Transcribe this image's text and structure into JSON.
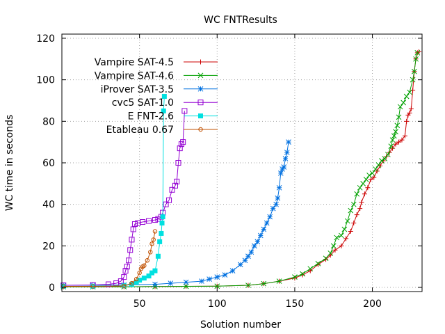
{
  "chart_data": {
    "type": "line",
    "title": "WC FNTResults",
    "xlabel": "Solution number",
    "ylabel": "WC time in seconds",
    "xlim": [
      0,
      232
    ],
    "ylim": [
      -2,
      122
    ],
    "xticks": [
      50,
      100,
      150,
      200
    ],
    "yticks": [
      0,
      20,
      40,
      60,
      80,
      100,
      120
    ],
    "grid": true,
    "legend_position": "top-left",
    "series": [
      {
        "name": "Vampire SAT-4.5",
        "color": "#cc0000",
        "marker": "plus",
        "points": [
          [
            1,
            0.3
          ],
          [
            20,
            0.3
          ],
          [
            40,
            0.3
          ],
          [
            60,
            0.4
          ],
          [
            80,
            0.5
          ],
          [
            100,
            0.6
          ],
          [
            120,
            1.0
          ],
          [
            130,
            1.8
          ],
          [
            140,
            3.0
          ],
          [
            150,
            4.5
          ],
          [
            155,
            6.0
          ],
          [
            160,
            8.0
          ],
          [
            165,
            11.0
          ],
          [
            170,
            13.5
          ],
          [
            173,
            15.5
          ],
          [
            176,
            18.0
          ],
          [
            180,
            20.0
          ],
          [
            183,
            23.5
          ],
          [
            186,
            27.0
          ],
          [
            188,
            31.0
          ],
          [
            190,
            35.0
          ],
          [
            192,
            38.0
          ],
          [
            193,
            41.0
          ],
          [
            195,
            45.0
          ],
          [
            197,
            48.0
          ],
          [
            199,
            52.0
          ],
          [
            201,
            53.0
          ],
          [
            203,
            56.0
          ],
          [
            205,
            58.5
          ],
          [
            207,
            61.0
          ],
          [
            209,
            63.0
          ],
          [
            211,
            65.0
          ],
          [
            213,
            67.0
          ],
          [
            215,
            69.0
          ],
          [
            217,
            70.0
          ],
          [
            219,
            71.0
          ],
          [
            221,
            73.0
          ],
          [
            222,
            80.0
          ],
          [
            223,
            83.0
          ],
          [
            224,
            84.0
          ],
          [
            225,
            86.0
          ],
          [
            226,
            95.0
          ],
          [
            227,
            104.0
          ],
          [
            228,
            110.0
          ],
          [
            229,
            113.0
          ],
          [
            230,
            113.5
          ]
        ]
      },
      {
        "name": "Vampire SAT-4.6",
        "color": "#00a000",
        "marker": "cross",
        "points": [
          [
            1,
            0.3
          ],
          [
            20,
            0.3
          ],
          [
            40,
            0.3
          ],
          [
            60,
            0.4
          ],
          [
            80,
            0.5
          ],
          [
            100,
            0.6
          ],
          [
            120,
            1.0
          ],
          [
            130,
            1.8
          ],
          [
            140,
            3.0
          ],
          [
            150,
            5.0
          ],
          [
            155,
            6.5
          ],
          [
            160,
            9.0
          ],
          [
            165,
            11.5
          ],
          [
            170,
            14.0
          ],
          [
            173,
            16.5
          ],
          [
            175,
            20.0
          ],
          [
            177,
            24.0
          ],
          [
            180,
            25.0
          ],
          [
            182,
            28.0
          ],
          [
            184,
            32.0
          ],
          [
            186,
            37.0
          ],
          [
            188,
            40.0
          ],
          [
            190,
            45.0
          ],
          [
            192,
            48.0
          ],
          [
            194,
            50.0
          ],
          [
            196,
            52.0
          ],
          [
            198,
            54.0
          ],
          [
            200,
            55.0
          ],
          [
            202,
            57.0
          ],
          [
            204,
            59.0
          ],
          [
            206,
            61.0
          ],
          [
            208,
            62.0
          ],
          [
            210,
            64.0
          ],
          [
            212,
            68.0
          ],
          [
            213,
            71.0
          ],
          [
            214,
            73.0
          ],
          [
            215,
            75.0
          ],
          [
            216,
            78.0
          ],
          [
            217,
            82.0
          ],
          [
            218,
            87.0
          ],
          [
            220,
            89.0
          ],
          [
            222,
            92.0
          ],
          [
            224,
            94.0
          ],
          [
            226,
            100.0
          ],
          [
            227,
            104.0
          ],
          [
            228,
            110.0
          ],
          [
            229,
            113.0
          ]
        ]
      },
      {
        "name": "iProver SAT-3.5",
        "color": "#0070e0",
        "marker": "star",
        "points": [
          [
            1,
            1.0
          ],
          [
            20,
            1.0
          ],
          [
            40,
            1.2
          ],
          [
            60,
            1.5
          ],
          [
            70,
            2.0
          ],
          [
            80,
            2.5
          ],
          [
            90,
            3.0
          ],
          [
            95,
            4.0
          ],
          [
            100,
            5.0
          ],
          [
            105,
            6.0
          ],
          [
            110,
            8.0
          ],
          [
            115,
            11.0
          ],
          [
            118,
            13.0
          ],
          [
            120,
            15.0
          ],
          [
            122,
            17.0
          ],
          [
            124,
            20.0
          ],
          [
            126,
            22.0
          ],
          [
            128,
            25.0
          ],
          [
            130,
            28.0
          ],
          [
            132,
            31.0
          ],
          [
            134,
            34.0
          ],
          [
            136,
            38.0
          ],
          [
            138,
            40.0
          ],
          [
            139,
            43.0
          ],
          [
            140,
            48.0
          ],
          [
            141,
            55.0
          ],
          [
            142,
            57.0
          ],
          [
            143,
            58.0
          ],
          [
            144,
            62.0
          ],
          [
            145,
            65.0
          ],
          [
            146,
            70.0
          ]
        ]
      },
      {
        "name": "cvc5 SAT-1.0",
        "color": "#9400d3",
        "marker": "box",
        "points": [
          [
            1,
            1.0
          ],
          [
            20,
            1.2
          ],
          [
            30,
            1.5
          ],
          [
            35,
            2.0
          ],
          [
            38,
            3.0
          ],
          [
            40,
            5.0
          ],
          [
            41,
            8.0
          ],
          [
            42,
            10.0
          ],
          [
            43,
            13.0
          ],
          [
            44,
            18.0
          ],
          [
            45,
            23.0
          ],
          [
            46,
            28.0
          ],
          [
            47,
            30.5
          ],
          [
            49,
            31.0
          ],
          [
            52,
            31.5
          ],
          [
            56,
            32.0
          ],
          [
            60,
            32.5
          ],
          [
            62,
            33.0
          ],
          [
            64,
            34.0
          ],
          [
            65,
            36.0
          ],
          [
            67,
            40.0
          ],
          [
            69,
            42.0
          ],
          [
            71,
            47.0
          ],
          [
            73,
            49.0
          ],
          [
            74,
            51.0
          ],
          [
            75,
            60.0
          ],
          [
            76,
            67.0
          ],
          [
            77,
            69.0
          ],
          [
            78,
            70.0
          ],
          [
            79,
            85.0
          ]
        ]
      },
      {
        "name": "E FNT-2.6",
        "color": "#00e0e0",
        "marker": "filled-box",
        "points": [
          [
            1,
            0.5
          ],
          [
            20,
            0.5
          ],
          [
            40,
            0.8
          ],
          [
            45,
            1.5
          ],
          [
            48,
            2.5
          ],
          [
            50,
            3.5
          ],
          [
            53,
            4.5
          ],
          [
            56,
            5.5
          ],
          [
            58,
            7.0
          ],
          [
            60,
            8.0
          ],
          [
            62,
            15.0
          ],
          [
            63,
            22.0
          ],
          [
            64,
            26.0
          ],
          [
            64.5,
            31.0
          ],
          [
            65,
            34.0
          ],
          [
            65.5,
            85.0
          ],
          [
            66,
            92.0
          ]
        ]
      },
      {
        "name": "Etableau 0.67",
        "color": "#c05000",
        "marker": "circle",
        "points": [
          [
            1,
            0.5
          ],
          [
            20,
            0.5
          ],
          [
            40,
            0.7
          ],
          [
            45,
            2.0
          ],
          [
            48,
            4.0
          ],
          [
            50,
            7.0
          ],
          [
            51,
            9.0
          ],
          [
            52,
            10.0
          ],
          [
            53,
            10.5
          ],
          [
            55,
            13.0
          ],
          [
            57,
            17.0
          ],
          [
            58,
            21.0
          ],
          [
            59,
            23.0
          ],
          [
            60,
            27.0
          ]
        ]
      }
    ]
  }
}
